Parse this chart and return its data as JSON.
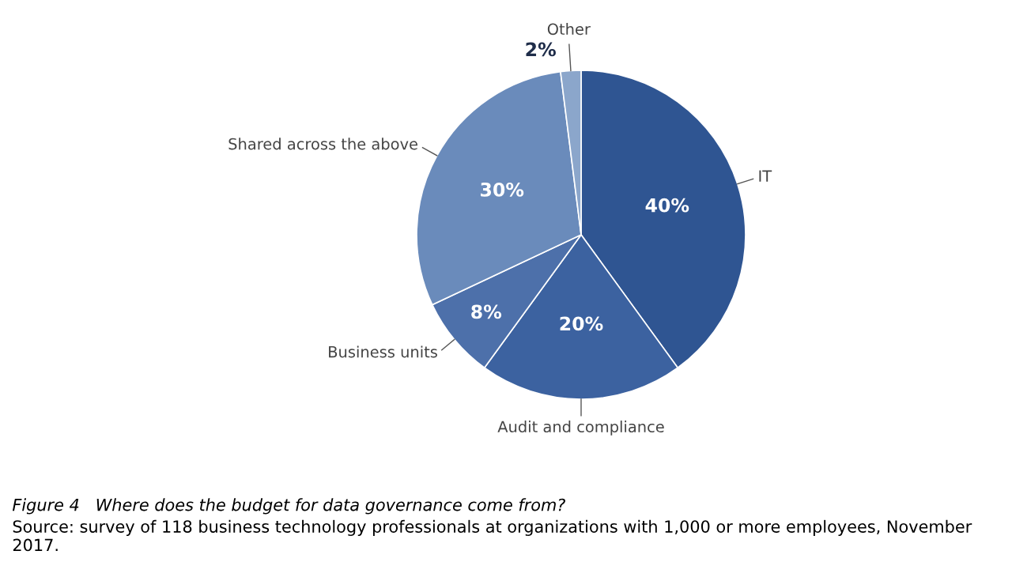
{
  "chart_data": {
    "type": "pie",
    "title": "Figure 4   Where does the budget for data governance come from?",
    "categories": [
      "IT",
      "Audit and compliance",
      "Business units",
      "Shared across the above",
      "Other"
    ],
    "values": [
      40,
      20,
      8,
      30,
      2
    ],
    "value_labels": [
      "40%",
      "20%",
      "8%",
      "30%",
      "2%"
    ],
    "colors": [
      "#2f5592",
      "#3c62a0",
      "#4d70aa",
      "#6a8bbb",
      "#8ba6cb"
    ],
    "annotations": [
      "Source: survey of 118 business technology professionals at organizations with 1,000 or more employees, November 2017."
    ],
    "legend": false
  }
}
